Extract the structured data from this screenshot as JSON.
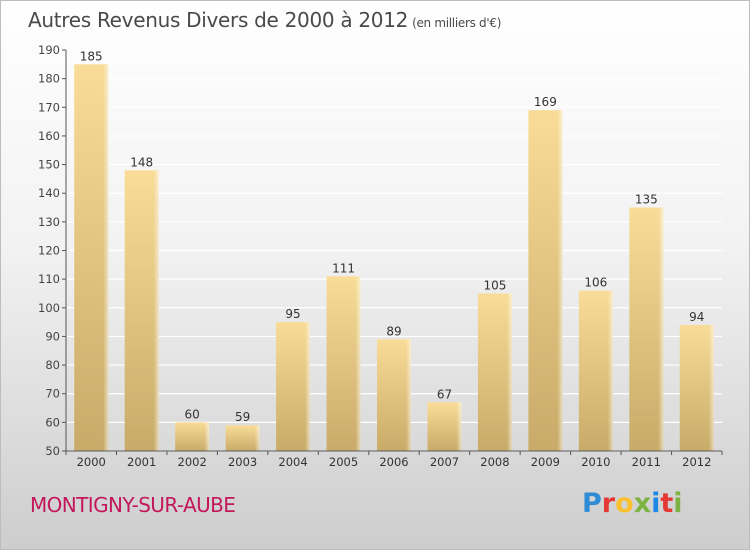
{
  "header": {
    "title": "Autres Revenus Divers de 2000 à 2012",
    "unit": "(en milliers d'€)"
  },
  "footer": {
    "commune": "MONTIGNY-SUR-AUBE",
    "brand_letters": [
      "P",
      "r",
      "o",
      "x",
      "i",
      "t",
      "i"
    ],
    "brand_colors": [
      "#2e8bd6",
      "#e53935",
      "#fbc02d",
      "#7cb342",
      "#1e88e5",
      "#e53935",
      "#7cb342"
    ]
  },
  "chart_data": {
    "type": "bar",
    "title": "Autres Revenus Divers de 2000 à 2012",
    "subtitle": "(en milliers d'€)",
    "categories": [
      "2000",
      "2001",
      "2002",
      "2003",
      "2004",
      "2005",
      "2006",
      "2007",
      "2008",
      "2009",
      "2010",
      "2011",
      "2012"
    ],
    "values": [
      185,
      148,
      60,
      59,
      95,
      111,
      89,
      67,
      105,
      169,
      106,
      135,
      94
    ],
    "ylim": [
      50,
      190
    ],
    "yticks": [
      50,
      60,
      70,
      80,
      90,
      100,
      110,
      120,
      130,
      140,
      150,
      160,
      170,
      180,
      190
    ],
    "grid": true,
    "bar_color": "#e3c886"
  }
}
